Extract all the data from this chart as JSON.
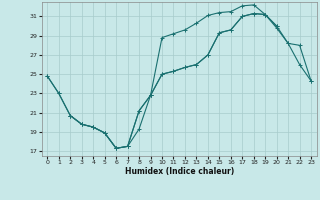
{
  "xlabel": "Humidex (Indice chaleur)",
  "bg_color": "#c8e8e8",
  "grid_color": "#a8cccc",
  "line_color": "#1a7070",
  "xlim": [
    -0.5,
    23.5
  ],
  "ylim": [
    16.5,
    32.5
  ],
  "xticks": [
    0,
    1,
    2,
    3,
    4,
    5,
    6,
    7,
    8,
    9,
    10,
    11,
    12,
    13,
    14,
    15,
    16,
    17,
    18,
    19,
    20,
    21,
    22,
    23
  ],
  "yticks": [
    17,
    19,
    21,
    23,
    25,
    27,
    29,
    31
  ],
  "curve1_x": [
    0,
    1,
    2,
    3,
    4,
    5,
    6,
    7,
    8,
    9,
    10,
    11,
    12,
    13,
    14,
    15,
    16,
    17,
    18,
    19,
    20,
    21,
    22,
    23
  ],
  "curve1_y": [
    24.8,
    23.0,
    20.7,
    19.8,
    19.5,
    18.9,
    17.3,
    17.5,
    19.3,
    22.8,
    25.0,
    25.3,
    25.7,
    26.0,
    27.0,
    29.3,
    29.6,
    31.0,
    31.3,
    31.2,
    30.0,
    28.2,
    26.0,
    24.3
  ],
  "curve2_x": [
    0,
    1,
    2,
    3,
    4,
    5,
    6,
    7,
    8,
    9,
    10,
    11,
    12,
    13,
    14,
    15,
    16,
    17,
    18,
    19,
    20
  ],
  "curve2_y": [
    24.8,
    23.0,
    20.7,
    19.8,
    19.5,
    18.9,
    17.3,
    17.5,
    21.2,
    22.8,
    28.8,
    29.2,
    29.6,
    30.3,
    31.1,
    31.4,
    31.5,
    32.1,
    32.2,
    31.2,
    30.0
  ],
  "curve3_x": [
    2,
    3,
    4,
    5,
    6,
    7,
    8,
    9,
    10,
    11,
    12,
    13,
    14,
    15,
    16,
    17,
    18,
    19,
    20,
    21,
    22,
    23
  ],
  "curve3_y": [
    20.7,
    19.8,
    19.5,
    18.9,
    17.3,
    17.5,
    21.2,
    22.8,
    25.0,
    25.3,
    25.7,
    26.0,
    27.0,
    29.3,
    29.6,
    31.0,
    31.3,
    31.2,
    29.8,
    28.2,
    28.0,
    24.3
  ]
}
